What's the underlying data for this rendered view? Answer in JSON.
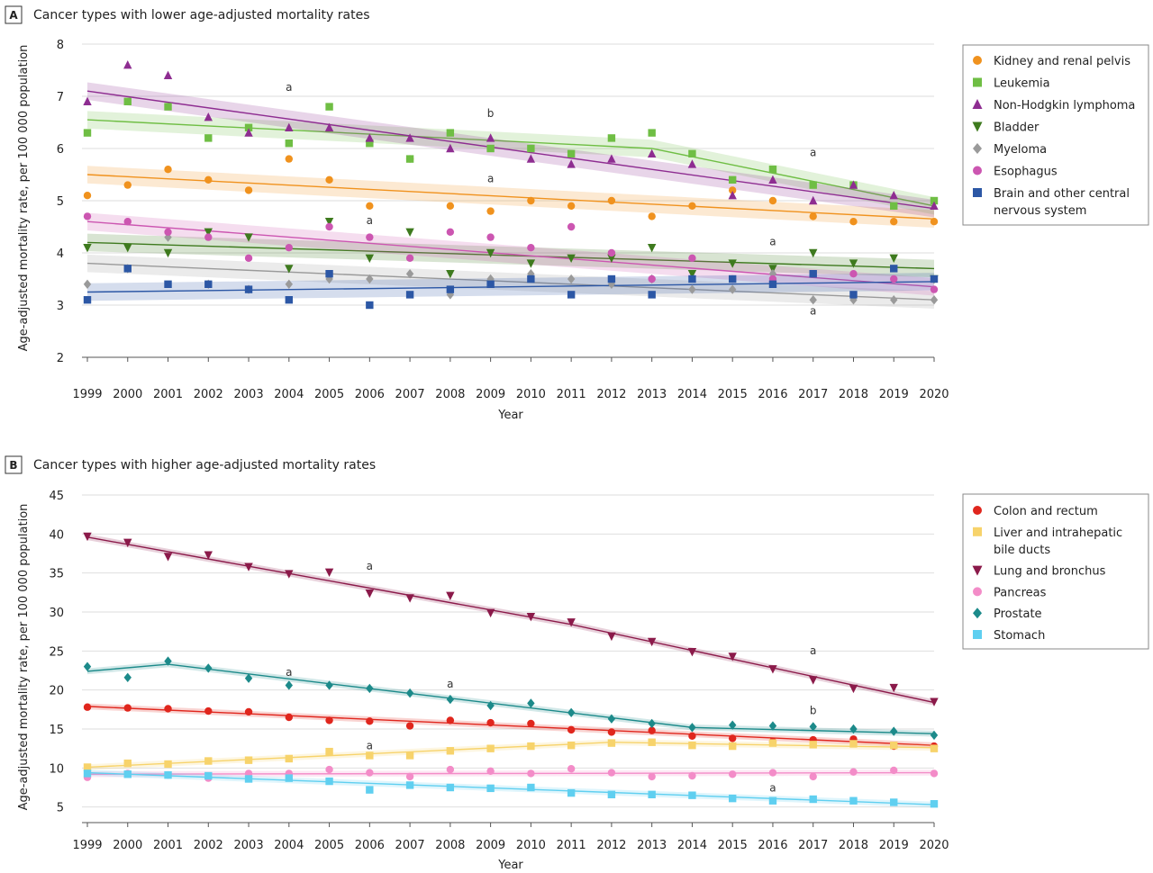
{
  "chart_data": [
    {
      "panel": "A",
      "type": "scatter",
      "title": "Cancer types with lower age-adjusted mortality rates",
      "xlabel": "Year",
      "ylabel": "Age-adjusted mortality rate, per 100 000 population",
      "x": [
        1999,
        2000,
        2001,
        2002,
        2003,
        2004,
        2005,
        2006,
        2007,
        2008,
        2009,
        2010,
        2011,
        2012,
        2013,
        2014,
        2015,
        2016,
        2017,
        2018,
        2019,
        2020
      ],
      "xlim": [
        1999,
        2020
      ],
      "ylim": [
        2,
        8
      ],
      "yticks": [
        2,
        3,
        4,
        5,
        6,
        7,
        8
      ],
      "grid": true,
      "legend": "right",
      "series": [
        {
          "name": "Kidney and renal pelvis",
          "color": "#f0921e",
          "marker": "circle",
          "values": [
            5.1,
            5.3,
            5.6,
            5.4,
            5.2,
            5.8,
            5.4,
            4.9,
            5.8,
            4.9,
            4.8,
            5.0,
            4.9,
            5.0,
            4.7,
            4.9,
            5.2,
            5.0,
            4.7,
            4.6,
            4.6,
            4.6
          ],
          "trend": [
            [
              1999,
              5.5
            ],
            [
              2020,
              4.65
            ]
          ]
        },
        {
          "name": "Leukemia",
          "color": "#6fbe44",
          "marker": "square",
          "values": [
            6.3,
            6.9,
            6.8,
            6.2,
            6.4,
            6.1,
            6.8,
            6.1,
            5.8,
            6.3,
            6.0,
            6.0,
            5.9,
            6.2,
            6.3,
            5.9,
            5.4,
            5.6,
            5.3,
            5.3,
            4.9,
            5.0
          ],
          "trend": [
            [
              1999,
              6.55
            ],
            [
              2013,
              6.0
            ],
            [
              2020,
              4.9
            ]
          ]
        },
        {
          "name": "Non-Hodgkin lymphoma",
          "color": "#8e2d91",
          "marker": "triangle-up",
          "values": [
            6.9,
            7.6,
            7.4,
            6.6,
            6.3,
            6.4,
            6.4,
            6.2,
            6.2,
            6.0,
            6.2,
            5.8,
            5.7,
            5.8,
            5.9,
            5.7,
            5.1,
            5.4,
            5.0,
            5.3,
            5.1,
            4.9
          ],
          "trend": [
            [
              1999,
              7.1
            ],
            [
              2020,
              4.85
            ]
          ]
        },
        {
          "name": "Bladder",
          "color": "#3e7a1e",
          "marker": "triangle-down",
          "values": [
            4.1,
            4.1,
            4.0,
            4.4,
            4.3,
            3.7,
            4.6,
            3.9,
            4.4,
            3.6,
            4.0,
            3.8,
            3.9,
            3.9,
            4.1,
            3.6,
            3.8,
            3.7,
            4.0,
            3.8,
            3.9,
            3.5
          ],
          "trend": [
            [
              1999,
              4.2
            ],
            [
              2020,
              3.7
            ]
          ]
        },
        {
          "name": "Myeloma",
          "color": "#9a9a9a",
          "marker": "diamond",
          "values": [
            3.4,
            3.7,
            4.3,
            3.4,
            3.3,
            3.4,
            3.5,
            3.5,
            3.6,
            3.2,
            3.5,
            3.6,
            3.5,
            3.4,
            3.5,
            3.3,
            3.3,
            3.6,
            3.1,
            3.1,
            3.1,
            3.1
          ],
          "trend": [
            [
              1999,
              3.8
            ],
            [
              2020,
              3.1
            ]
          ]
        },
        {
          "name": "Esophagus",
          "color": "#cc56b1",
          "marker": "circle",
          "values": [
            4.7,
            4.6,
            4.4,
            4.3,
            3.9,
            4.1,
            4.5,
            4.3,
            3.9,
            4.4,
            4.3,
            4.1,
            4.5,
            4.0,
            3.5,
            3.9,
            3.5,
            3.5,
            3.6,
            3.6,
            3.5,
            3.3
          ],
          "trend": [
            [
              1999,
              4.6
            ],
            [
              2020,
              3.35
            ]
          ]
        },
        {
          "name": "Brain and other central nervous system",
          "color": "#2c57a5",
          "marker": "square",
          "values": [
            3.1,
            3.7,
            3.4,
            3.4,
            3.3,
            3.1,
            3.6,
            3.0,
            3.2,
            3.3,
            3.4,
            3.5,
            3.2,
            3.5,
            3.2,
            3.5,
            3.5,
            3.4,
            3.6,
            3.2,
            3.7,
            3.5
          ],
          "trend": [
            [
              1999,
              3.25
            ],
            [
              2020,
              3.45
            ]
          ]
        }
      ],
      "annotations": [
        {
          "text": "a",
          "x": 2004,
          "y": 7.1
        },
        {
          "text": "b",
          "x": 2009,
          "y": 6.6
        },
        {
          "text": "a",
          "x": 2009,
          "y": 5.35
        },
        {
          "text": "a",
          "x": 2006,
          "y": 4.55
        },
        {
          "text": "a",
          "x": 2016,
          "y": 4.15
        },
        {
          "text": "a",
          "x": 2017,
          "y": 5.85
        },
        {
          "text": "a",
          "x": 2017,
          "y": 2.82
        }
      ]
    },
    {
      "panel": "B",
      "type": "scatter",
      "title": "Cancer types with higher age-adjusted mortality rates",
      "xlabel": "Year",
      "ylabel": "Age-adjusted mortality rate, per 100 000 population",
      "x": [
        1999,
        2000,
        2001,
        2002,
        2003,
        2004,
        2005,
        2006,
        2007,
        2008,
        2009,
        2010,
        2011,
        2012,
        2013,
        2014,
        2015,
        2016,
        2017,
        2018,
        2019,
        2020
      ],
      "xlim": [
        1999,
        2020
      ],
      "ylim": [
        3,
        45
      ],
      "yticks": [
        5,
        10,
        15,
        20,
        25,
        30,
        35,
        40,
        45
      ],
      "grid": true,
      "legend": "right",
      "series": [
        {
          "name": "Colon and rectum",
          "color": "#e0261d",
          "marker": "circle",
          "values": [
            17.8,
            17.7,
            17.6,
            17.3,
            17.2,
            16.5,
            16.1,
            16.0,
            15.4,
            16.1,
            15.8,
            15.7,
            14.9,
            14.6,
            14.8,
            14.1,
            13.8,
            13.4,
            13.6,
            13.7,
            12.8,
            12.8
          ],
          "trend": [
            [
              1999,
              17.9
            ],
            [
              2020,
              12.9
            ]
          ]
        },
        {
          "name": "Liver and intrahepatic bile ducts",
          "color": "#f7d36b",
          "marker": "square",
          "values": [
            10.1,
            10.6,
            10.5,
            10.9,
            11.0,
            11.2,
            12.1,
            11.6,
            11.6,
            12.2,
            12.5,
            12.8,
            12.9,
            13.2,
            13.3,
            12.9,
            12.8,
            13.2,
            13.0,
            13.1,
            12.9,
            12.5
          ],
          "trend": [
            [
              1999,
              10.1
            ],
            [
              2012,
              13.3
            ],
            [
              2020,
              12.6
            ]
          ]
        },
        {
          "name": "Lung and bronchus",
          "color": "#8b1a4a",
          "marker": "triangle-down",
          "values": [
            39.7,
            38.9,
            37.1,
            37.3,
            35.8,
            34.9,
            35.1,
            32.4,
            31.8,
            32.1,
            29.9,
            29.4,
            28.7,
            26.9,
            26.2,
            24.9,
            24.3,
            22.7,
            21.3,
            20.2,
            20.3,
            18.5
          ],
          "trend": [
            [
              1999,
              39.6
            ],
            [
              2011,
              28.4
            ],
            [
              2020,
              18.4
            ]
          ]
        },
        {
          "name": "Pancreas",
          "color": "#f38cc8",
          "marker": "circle",
          "values": [
            8.8,
            9.3,
            9.1,
            8.7,
            9.3,
            9.3,
            9.8,
            9.4,
            8.9,
            9.8,
            9.6,
            9.3,
            9.9,
            9.4,
            8.9,
            9.0,
            9.2,
            9.4,
            8.9,
            9.5,
            9.7,
            9.3
          ],
          "trend": [
            [
              1999,
              9.2
            ],
            [
              2020,
              9.4
            ]
          ]
        },
        {
          "name": "Prostate",
          "color": "#1c8a8a",
          "marker": "diamond",
          "values": [
            23.0,
            21.6,
            23.7,
            22.8,
            21.5,
            20.6,
            20.6,
            20.2,
            19.6,
            18.8,
            18.0,
            18.3,
            17.1,
            16.3,
            15.7,
            15.2,
            15.5,
            15.4,
            15.3,
            15.0,
            14.7,
            14.2
          ],
          "trend": [
            [
              1999,
              22.4
            ],
            [
              2001,
              23.3
            ],
            [
              2014,
              15.2
            ],
            [
              2020,
              14.4
            ]
          ]
        },
        {
          "name": "Stomach",
          "color": "#5fcff0",
          "marker": "square",
          "values": [
            9.3,
            9.2,
            9.1,
            9.0,
            8.6,
            8.7,
            8.3,
            7.2,
            7.8,
            7.5,
            7.4,
            7.5,
            6.8,
            6.6,
            6.6,
            6.5,
            6.1,
            5.8,
            6.0,
            5.8,
            5.6,
            5.4
          ],
          "trend": [
            [
              1999,
              9.4
            ],
            [
              2020,
              5.3
            ]
          ]
        }
      ],
      "annotations": [
        {
          "text": "a",
          "x": 2006,
          "y": 35.4
        },
        {
          "text": "a",
          "x": 2004,
          "y": 21.8
        },
        {
          "text": "a",
          "x": 2008,
          "y": 20.3
        },
        {
          "text": "a",
          "x": 2006,
          "y": 12.4
        },
        {
          "text": "a",
          "x": 2017,
          "y": 24.6
        },
        {
          "text": "b",
          "x": 2017,
          "y": 16.9
        },
        {
          "text": "a",
          "x": 2016,
          "y": 7.0
        }
      ]
    }
  ]
}
